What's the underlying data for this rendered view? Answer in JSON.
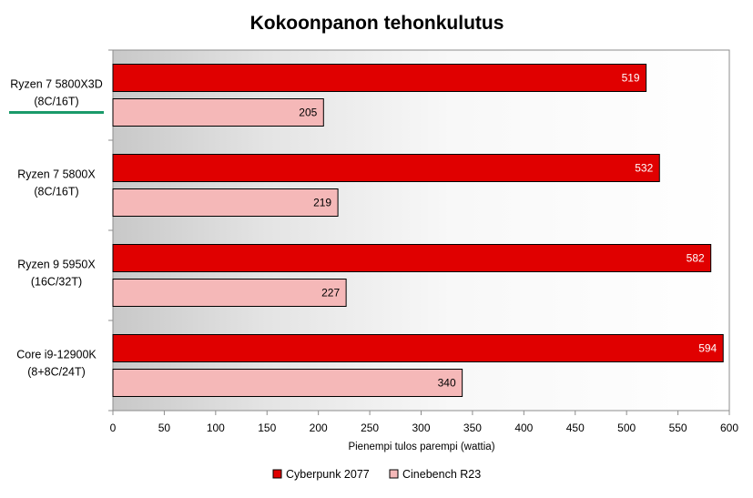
{
  "chart_data": {
    "type": "bar",
    "orientation": "horizontal",
    "title": "Kokoonpanon tehonkulutus",
    "xlabel": "Pienempi tulos parempi (wattia)",
    "ylabel": "",
    "xlim": [
      0,
      600
    ],
    "xticks": [
      0,
      50,
      100,
      150,
      200,
      250,
      300,
      350,
      400,
      450,
      500,
      550,
      600
    ],
    "grid": false,
    "legend_position": "bottom",
    "categories": [
      {
        "line1": "Ryzen 7 5800X3D",
        "line2": "(8C/16T)",
        "highlighted": true
      },
      {
        "line1": "Ryzen 7 5800X",
        "line2": "(8C/16T)",
        "highlighted": false
      },
      {
        "line1": "Ryzen 9 5950X",
        "line2": "(16C/32T)",
        "highlighted": false
      },
      {
        "line1": "Core i9-12900K",
        "line2": "(8+8C/24T)",
        "highlighted": false
      }
    ],
    "series": [
      {
        "name": "Cyberpunk 2077",
        "color": "#e00000",
        "label_color": "#ffffff",
        "values": [
          519,
          532,
          582,
          594
        ]
      },
      {
        "name": "Cinebench R23",
        "color": "#f5b8b8",
        "label_color": "#000000",
        "values": [
          205,
          219,
          227,
          340
        ]
      }
    ],
    "highlight_color": "#1a9a6a",
    "plot_background": "gradient gray"
  }
}
